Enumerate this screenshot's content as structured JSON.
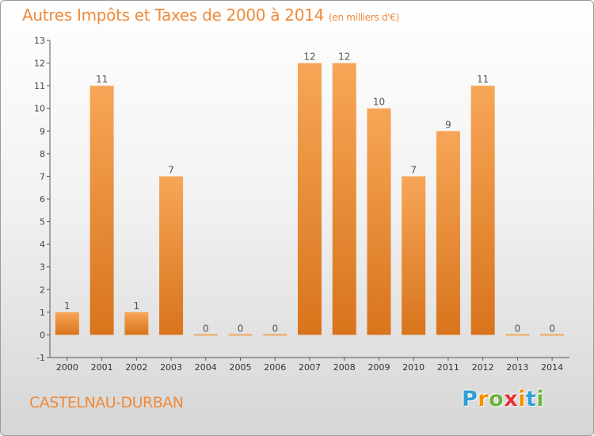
{
  "chart_data": {
    "type": "bar",
    "title": "Autres Impôts et Taxes de 2000 à 2014",
    "unit": "(en milliers d'€)",
    "categories": [
      "2000",
      "2001",
      "2002",
      "2003",
      "2004",
      "2005",
      "2006",
      "2007",
      "2008",
      "2009",
      "2010",
      "2011",
      "2012",
      "2013",
      "2014"
    ],
    "values": [
      1,
      11,
      1,
      7,
      0,
      0,
      0,
      12,
      12,
      10,
      7,
      9,
      11,
      0,
      0
    ],
    "ylim": [
      -1,
      13
    ],
    "yticks": [
      -1,
      0,
      1,
      2,
      3,
      4,
      5,
      6,
      7,
      8,
      9,
      10,
      11,
      12,
      13
    ],
    "grid": false,
    "bar_color": "#f0963e"
  },
  "location": "CASTELNAU-DURBAN",
  "logo": {
    "letters": [
      "P",
      "r",
      "o",
      "x",
      "i",
      "t",
      "i"
    ],
    "colors": [
      "#2f9fd8",
      "#f29200",
      "#6db33f",
      "#e53131",
      "#f29200",
      "#2f9fd8",
      "#6db33f"
    ]
  },
  "colors": {
    "title": "#ee8a3a",
    "axis": "#555555"
  }
}
